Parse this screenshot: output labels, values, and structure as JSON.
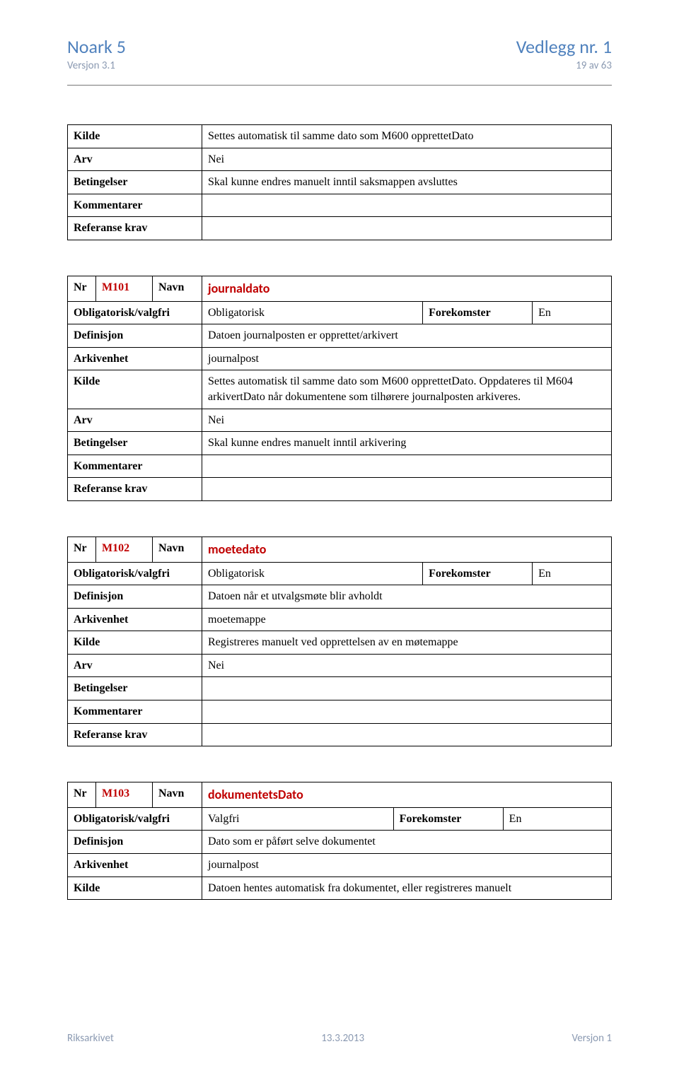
{
  "header": {
    "left_title": "Noark 5",
    "right_title": "Vedlegg nr. 1",
    "left_sub": "Versjon 3.1",
    "right_sub": "19 av 63"
  },
  "colors": {
    "header_blue": "#4f81bd",
    "code_red": "#c00000",
    "sub_gray": "#8b9ab2"
  },
  "labels": {
    "nr": "Nr",
    "navn": "Navn",
    "obligatorisk_valgfri": "Obligatorisk/valgfri",
    "forekomster": "Forekomster",
    "definisjon": "Definisjon",
    "arkivenhet": "Arkivenhet",
    "kilde": "Kilde",
    "arv": "Arv",
    "betingelser": "Betingelser",
    "kommentarer": "Kommentarer",
    "referanse_krav": "Referanse krav"
  },
  "table0": {
    "kilde": "Settes automatisk til samme dato som M600 opprettetDato",
    "arv": "Nei",
    "betingelser": "Skal kunne endres manuelt inntil saksmappen avsluttes",
    "kommentarer": "",
    "referanse_krav": ""
  },
  "table1": {
    "code": "M101",
    "name": "journaldato",
    "oblig": "Obligatorisk",
    "forekomster": "En",
    "definisjon": "Datoen journalposten er opprettet/arkivert",
    "arkivenhet": "journalpost",
    "kilde": "Settes automatisk til samme dato som M600 opprettetDato. Oppdateres til M604 arkivertDato når dokumentene som tilhørere journalposten arkiveres.",
    "arv": "Nei",
    "betingelser": "Skal kunne endres manuelt inntil arkivering",
    "kommentarer": "",
    "referanse_krav": ""
  },
  "table2": {
    "code": "M102",
    "name": "moetedato",
    "oblig": "Obligatorisk",
    "forekomster": "En",
    "definisjon": "Datoen når et utvalgsmøte blir avholdt",
    "arkivenhet": "moetemappe",
    "kilde": "Registreres manuelt ved opprettelsen av en møtemappe",
    "arv": "Nei",
    "betingelser": "",
    "kommentarer": "",
    "referanse_krav": ""
  },
  "table3": {
    "code": "M103",
    "name": "dokumentetsDato",
    "oblig": "Valgfri",
    "forekomster": "En",
    "definisjon": "Dato som er påført selve dokumentet",
    "arkivenhet": "journalpost",
    "kilde": "Datoen hentes automatisk fra dokumentet, eller registreres manuelt"
  },
  "footer": {
    "left": "Riksarkivet",
    "center": "13.3.2013",
    "right": "Versjon 1"
  }
}
